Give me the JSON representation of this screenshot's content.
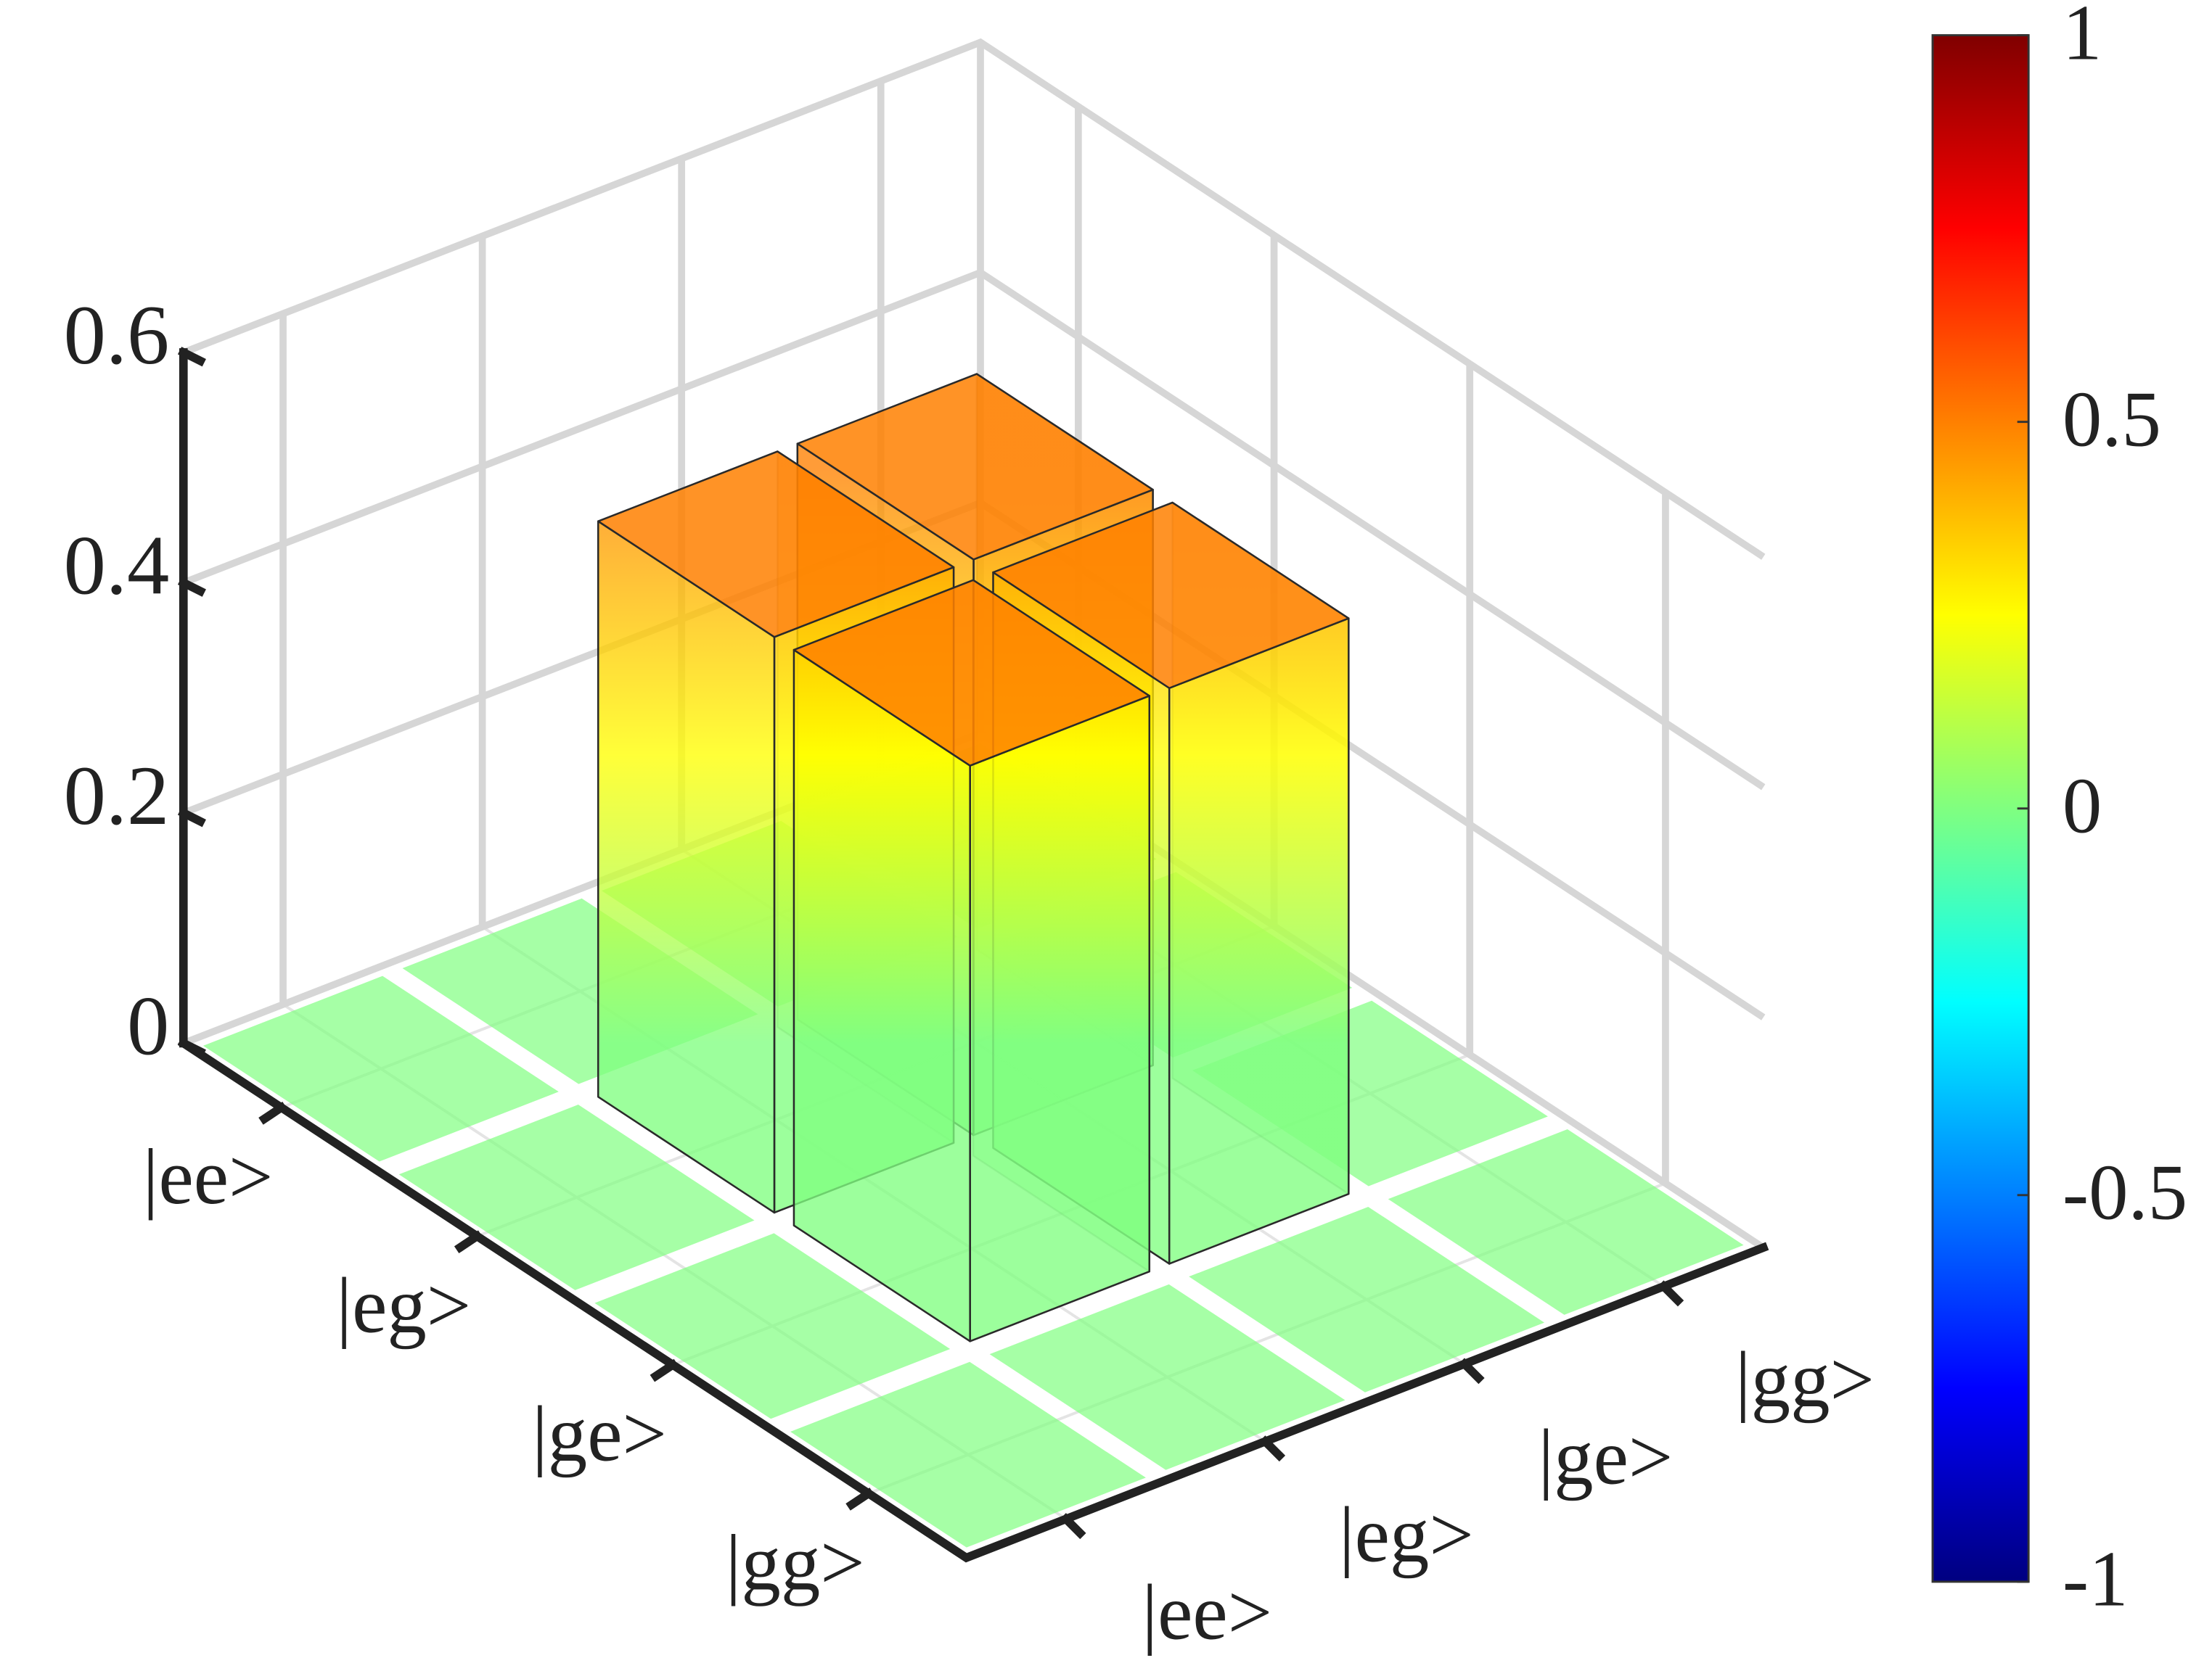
{
  "chart_data": {
    "type": "bar3d",
    "rows": [
      "|ee>",
      "|eg>",
      "|ge>",
      "|gg>"
    ],
    "columns": [
      "|ee>",
      "|eg>",
      "|ge>",
      "|gg>"
    ],
    "values": [
      [
        0,
        0,
        0,
        0
      ],
      [
        0,
        0.5,
        0.5,
        0
      ],
      [
        0,
        0.5,
        0.5,
        0
      ],
      [
        0,
        0,
        0,
        0
      ]
    ],
    "zlim": [
      0,
      0.6
    ],
    "zticks": [
      0,
      0.2,
      0.4,
      0.6
    ],
    "colormap": "jet",
    "clim": [
      -1,
      1
    ],
    "cticks": [
      -1,
      -0.5,
      0,
      0.5,
      1
    ],
    "grid": true
  }
}
